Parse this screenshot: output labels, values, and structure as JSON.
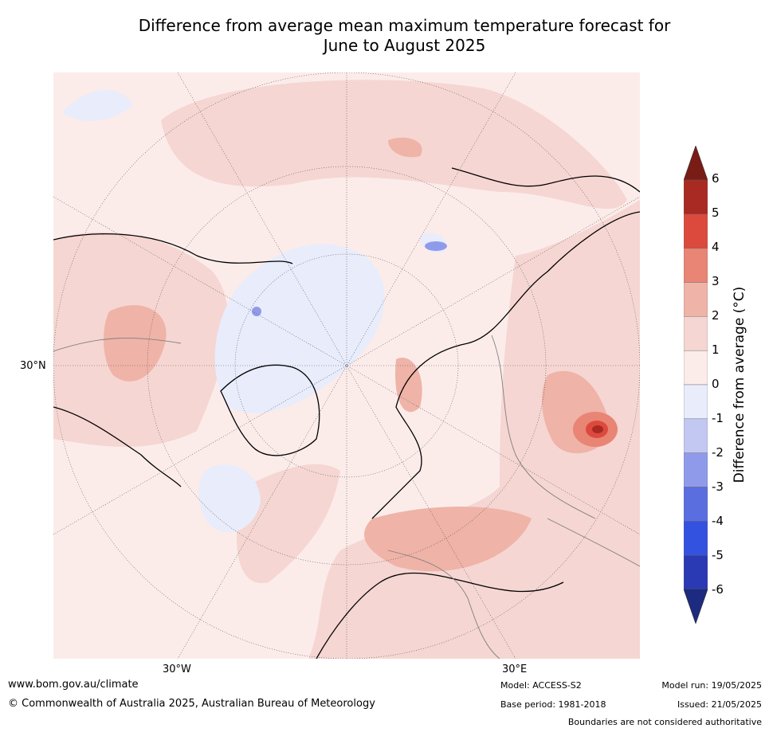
{
  "title": {
    "line1": "Difference from average mean maximum temperature forecast for",
    "line2": "June to August 2025"
  },
  "map": {
    "projection": "North Polar Stereographic",
    "graticule_labels": {
      "lat": "30°N",
      "lon_left": "30°W",
      "lon_right": "30°E"
    }
  },
  "colorbar": {
    "title": "Difference from average (°C)",
    "ticks": [
      "6",
      "5",
      "4",
      "3",
      "2",
      "1",
      "0",
      "-1",
      "-2",
      "-3",
      "-4",
      "-5",
      "-6"
    ],
    "colors": [
      "#7a1c16",
      "#a82a22",
      "#dc4a3e",
      "#e88575",
      "#efb3a8",
      "#f5d6d2",
      "#fbecea",
      "#e8ecfb",
      "#c2c8f2",
      "#8f9bea",
      "#5a6ee0",
      "#3452e0",
      "#2a3ab4",
      "#1c2a80"
    ]
  },
  "footer": {
    "url": "www.bom.gov.au/climate",
    "copyright": "© Commonwealth of Australia 2025, Australian Bureau of Meteorology",
    "model": "Model: ACCESS-S2",
    "base_period": "Base period: 1981-2018",
    "model_run": "Model run: 19/05/2025",
    "issued": "Issued: 21/05/2025",
    "disclaimer": "Boundaries are not considered authoritative"
  }
}
